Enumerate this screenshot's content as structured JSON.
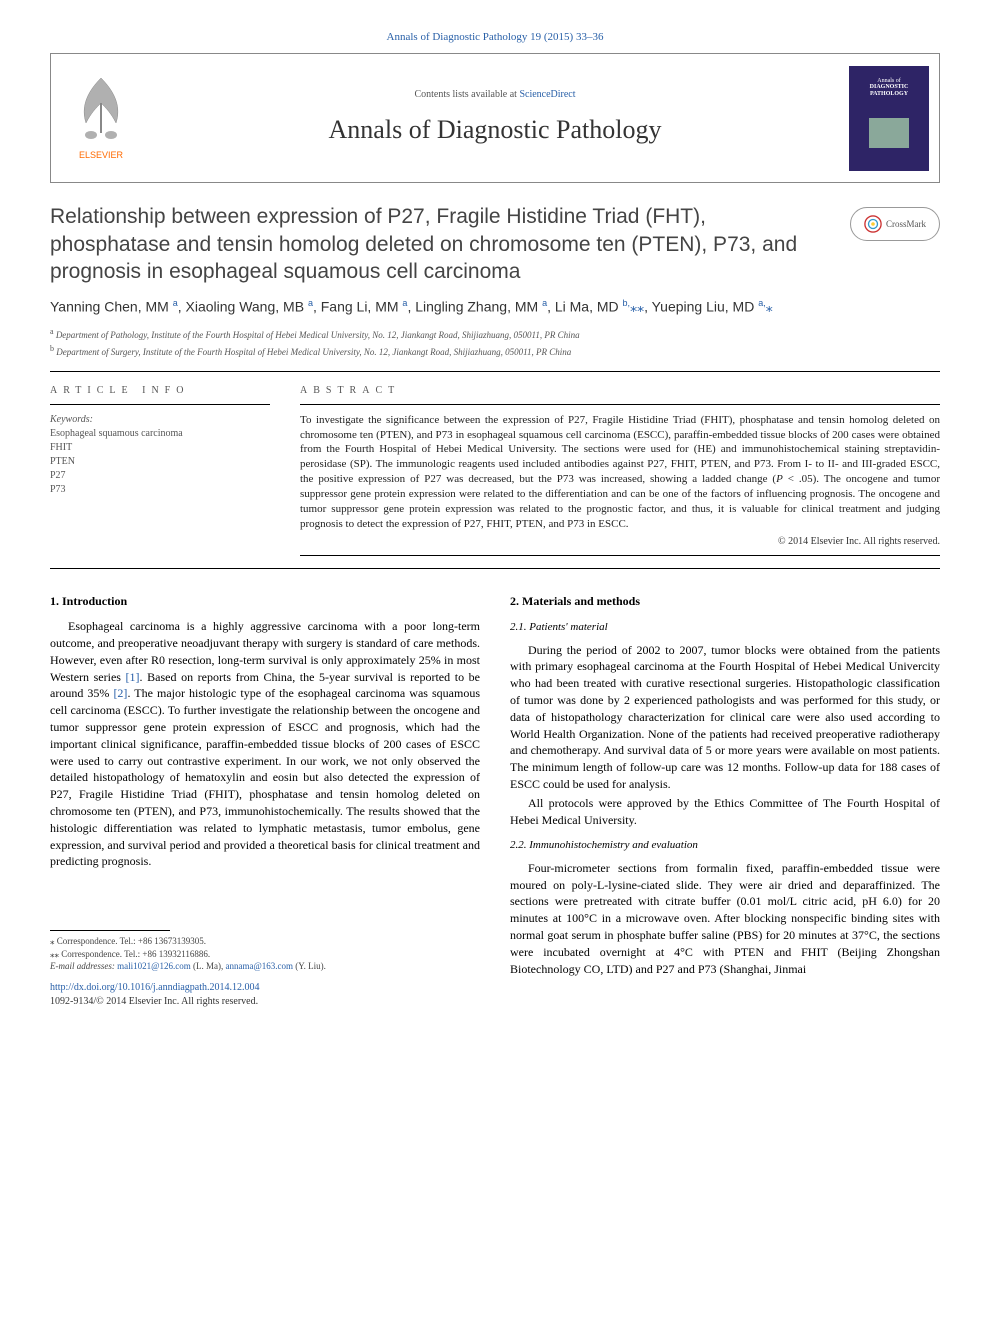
{
  "citation": {
    "text": "Annals of Diagnostic Pathology 19 (2015) 33–36",
    "link_color": "#2960a8"
  },
  "header": {
    "contents_text": "Contents lists available at ",
    "contents_link": "ScienceDirect",
    "journal_name": "Annals of Diagnostic Pathology",
    "cover_title_line1": "Annals of",
    "cover_title_line2": "DIAGNOSTIC",
    "cover_title_line3": "PATHOLOGY",
    "elsevier_label": "ELSEVIER",
    "elsevier_color": "#ff6a00"
  },
  "crossmark": {
    "label": "CrossMark"
  },
  "title": "Relationship between expression of P27, Fragile Histidine Triad (FHT), phosphatase and tensin homolog deleted on chromosome ten (PTEN), P73, and prognosis in esophageal squamous cell carcinoma",
  "authors_html": "Yanning Chen, MM <sup>a</sup>, Xiaoling Wang, MB <sup>a</sup>, Fang Li, MM <sup>a</sup>, Lingling Zhang, MM <sup>a</sup>, Li Ma, MD <sup>b,</sup><span class='star'>⁎⁎</span>, Yueping Liu, MD <sup>a,</sup><span class='star'>⁎</span>",
  "affiliations": [
    {
      "sup": "a",
      "text": "Department of Pathology, Institute of the Fourth Hospital of Hebei Medical University, No. 12, Jiankangt Road, Shijiazhuang, 050011, PR China"
    },
    {
      "sup": "b",
      "text": "Department of Surgery, Institute of the Fourth Hospital of Hebei Medical University, No. 12, Jiankangt Road, Shijiazhuang, 050011, PR China"
    }
  ],
  "article_info": {
    "heading": "ARTICLE INFO",
    "keywords_label": "Keywords:",
    "keywords": [
      "Esophageal squamous carcinoma",
      "FHIT",
      "PTEN",
      "P27",
      "P73"
    ]
  },
  "abstract": {
    "heading": "ABSTRACT",
    "text": "To investigate the significance between the expression of P27, Fragile Histidine Triad (FHIT), phosphatase and tensin homolog deleted on chromosome ten (PTEN), and P73 in esophageal squamous cell carcinoma (ESCC), paraffin-embedded tissue blocks of 200 cases were obtained from the Fourth Hospital of Hebei Medical University. The sections were used for (HE) and immunohistochemical staining streptavidin-perosidase (SP). The immunologic reagents used included antibodies against P27, FHIT, PTEN, and P73. From I- to II- and III-graded ESCC, the positive expression of P27 was decreased, but the P73 was increased, showing a ladded change (P < .05). The oncogene and tumor suppressor gene protein expression were related to the differentiation and can be one of the factors of influencing prognosis. The oncogene and tumor suppressor gene protein expression was related to the prognostic factor, and thus, it is valuable for clinical treatment and judging prognosis to detect the expression of P27, FHIT, PTEN, and P73 in ESCC.",
    "copyright": "© 2014 Elsevier Inc. All rights reserved."
  },
  "sections": {
    "intro_heading": "1. Introduction",
    "intro_p1": "Esophageal carcinoma is a highly aggressive carcinoma with a poor long-term outcome, and preoperative neoadjuvant therapy with surgery is standard of care methods. However, even after R0 resection, long-term survival is only approximately 25% in most Western series ",
    "intro_ref1": "[1]",
    "intro_p1b": ". Based on reports from China, the 5-year survival is reported to be around 35% ",
    "intro_ref2": "[2]",
    "intro_p1c": ". The major histologic type of the esophageal carcinoma was squamous cell carcinoma (ESCC). To further investigate the relationship between the oncogene and tumor suppressor gene protein expression of ESCC and prognosis, which had the important clinical significance, paraffin-embedded tissue blocks of 200 cases of ESCC were used to carry out contrastive experiment. In our work, we not only observed the detailed histopathology of hematoxylin and eosin but also detected the expression of P27, Fragile Histidine Triad (FHIT), phosphatase and tensin homolog deleted on chromosome ten (PTEN), and P73, immunohistochemically. The results showed that the histologic differentiation was related to lymphatic metastasis, tumor embolus, gene expression, and survival period and provided a theoretical basis for clinical treatment and predicting prognosis.",
    "methods_heading": "2. Materials and methods",
    "sub21_heading": "2.1. Patients' material",
    "sub21_p1": "During the period of 2002 to 2007, tumor blocks were obtained from the patients with primary esophageal carcinoma at the Fourth Hospital of Hebei Medical Univercity who had been treated with curative resectional surgeries. Histopathologic classification of tumor was done by 2 experienced pathologists and was performed for this study, or data of histopathology characterization for clinical care were also used according to World Health Organization. None of the patients had received preoperative radiotherapy and chemotherapy. And survival data of 5 or more years were available on most patients. The minimum length of follow-up care was 12 months. Follow-up data for 188 cases of ESCC could be used for analysis.",
    "sub21_p2": "All protocols were approved by the Ethics Committee of The Fourth Hospital of Hebei Medical University.",
    "sub22_heading": "2.2. Immunohistochemistry and evaluation",
    "sub22_p1": "Four-micrometer sections from formalin fixed, paraffin-embedded tissue were moured on poly-L-lysine-ciated slide. They were air dried and deparaffinized. The sections were pretreated with citrate buffer (0.01 mol/L citric acid, pH 6.0) for 20 minutes at 100°C in a microwave oven. After blocking nonspecific binding sites with normal goat serum in phosphate buffer saline (PBS) for 20 minutes at 37°C, the sections were incubated overnight at 4°C with PTEN and FHIT (Beijing Zhongshan Biotechnology CO, LTD) and P27 and P73 (Shanghai, Jinmai"
  },
  "footer": {
    "corr1": "⁎ Correspondence. Tel.: +86 13673139305.",
    "corr2": "⁎⁎ Correspondence. Tel.: +86 13932116886.",
    "email_label": "E-mail addresses: ",
    "email1": "mali1021@126.com",
    "email1_name": " (L. Ma), ",
    "email2": "annama@163.com",
    "email2_name": " (Y. Liu).",
    "doi": "http://dx.doi.org/10.1016/j.anndiagpath.2014.12.004",
    "issn": "1092-9134/© 2014 Elsevier Inc. All rights reserved."
  },
  "colors": {
    "link": "#2960a8",
    "elsevier": "#ff6a00",
    "cover_bg": "#2e2466"
  }
}
